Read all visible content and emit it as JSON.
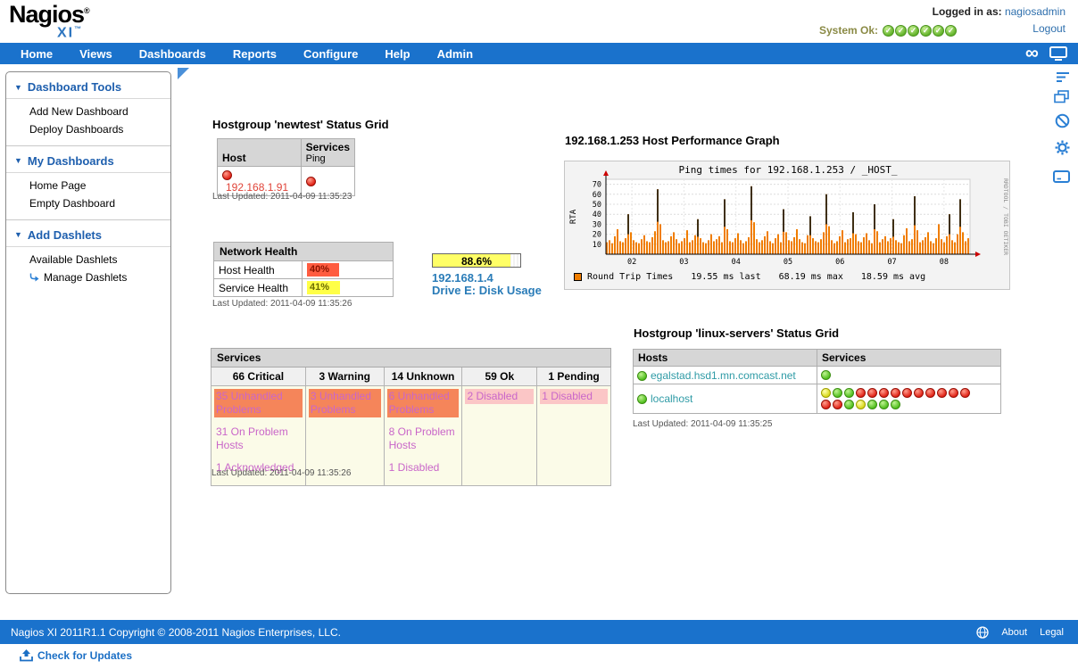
{
  "header": {
    "logo_main": "Nagios",
    "logo_reg": "®",
    "logo_sub": "XI",
    "logo_tm": "™",
    "logged_in_label": "Logged in as:",
    "username": "nagiosadmin",
    "logout_label": "Logout",
    "system_status_label": "System Ok:",
    "system_status_ok_count": 6
  },
  "icons": {
    "ok_check": "✓",
    "section_triangle": "▼",
    "infinity": "∞"
  },
  "nav": {
    "items": [
      "Home",
      "Views",
      "Dashboards",
      "Reports",
      "Configure",
      "Help",
      "Admin"
    ]
  },
  "sidebar": {
    "sections": [
      {
        "title": "Dashboard Tools",
        "items": [
          {
            "label": "Add New Dashboard"
          },
          {
            "label": "Deploy Dashboards"
          }
        ]
      },
      {
        "title": "My Dashboards",
        "items": [
          {
            "label": "Home Page"
          },
          {
            "label": "Empty Dashboard"
          }
        ]
      },
      {
        "title": "Add Dashlets",
        "items": [
          {
            "label": "Available Dashlets"
          },
          {
            "label": "Manage Dashlets",
            "icon": "curved-arrow-icon"
          }
        ]
      }
    ]
  },
  "newtest_grid": {
    "title": "Hostgroup 'newtest' Status Grid",
    "columns": {
      "host": "Host",
      "services": "Services"
    },
    "service_name": "Ping",
    "rows": [
      {
        "host": "192.168.1.91",
        "host_status": "red",
        "services": [
          "red"
        ]
      }
    ],
    "last_updated": "Last Updated: 2011-04-09 11:35:23"
  },
  "perf_graph": {
    "title": "192.168.1.253 Host Performance Graph",
    "chart_data": {
      "type": "area",
      "title": "Ping times for  192.168.1.253 / _HOST_",
      "ylabel": "RTA",
      "y_ticks": [
        10,
        20,
        30,
        40,
        50,
        60,
        70
      ],
      "ymax": 75,
      "x_ticks": [
        "02",
        "03",
        "04",
        "05",
        "06",
        "07",
        "08"
      ],
      "series_name": "Round Trip Times",
      "series_color": "#f07d00",
      "values": [
        12,
        14,
        11,
        18,
        25,
        13,
        12,
        16,
        40,
        22,
        14,
        12,
        11,
        15,
        19,
        13,
        12,
        17,
        23,
        65,
        30,
        14,
        12,
        13,
        18,
        22,
        15,
        11,
        13,
        16,
        24,
        12,
        14,
        19,
        35,
        16,
        12,
        11,
        14,
        20,
        13,
        15,
        18,
        12,
        55,
        25,
        13,
        12,
        16,
        21,
        14,
        11,
        13,
        17,
        68,
        32,
        15,
        12,
        14,
        18,
        23,
        13,
        11,
        16,
        20,
        12,
        45,
        22,
        14,
        13,
        17,
        25,
        15,
        12,
        11,
        19,
        38,
        16,
        13,
        12,
        15,
        22,
        60,
        28,
        14,
        11,
        13,
        18,
        24,
        12,
        15,
        16,
        42,
        20,
        13,
        12,
        17,
        21,
        14,
        11,
        50,
        23,
        12,
        15,
        18,
        13,
        16,
        35,
        14,
        12,
        11,
        19,
        26,
        13,
        15,
        58,
        24,
        12,
        14,
        17,
        22,
        13,
        11,
        16,
        30,
        15,
        12,
        18,
        40,
        14,
        12,
        20,
        55,
        22,
        13,
        16
      ],
      "legend": {
        "series": "Round Trip Times",
        "last": "19.55 ms last",
        "max": "68.19 ms max",
        "avg": "18.59 ms avg"
      },
      "watermark": "RRDTOOL / TOBI OETIKER",
      "grid": true,
      "legend_position": "bottom"
    }
  },
  "network_health": {
    "title": "Network Health",
    "rows": [
      {
        "label": "Host Health",
        "value": "40%",
        "pct": 40,
        "fill": "#ff5c40",
        "text_color": "#8a1400"
      },
      {
        "label": "Service Health",
        "value": "41%",
        "pct": 41,
        "fill": "#ffff47",
        "text_color": "#6b6b00"
      }
    ],
    "last_updated": "Last Updated: 2011-04-09 11:35:26"
  },
  "disk_gauge": {
    "value": "88.6%",
    "pct": 88.6,
    "fill": "#ffff66",
    "host": "192.168.1.4",
    "label": "Drive E: Disk Usage"
  },
  "services_summary": {
    "title": "Services",
    "columns": [
      {
        "header": "66 Critical",
        "items": [
          {
            "label": "35 Unhandled Problems",
            "style": "unhandled"
          },
          {
            "label": "31 On Problem Hosts",
            "style": "plain"
          },
          {
            "label": "1 Acknowledged",
            "style": "plain"
          }
        ]
      },
      {
        "header": "3 Warning",
        "items": [
          {
            "label": "3 Unhandled Problems",
            "style": "unhandled"
          }
        ]
      },
      {
        "header": "14 Unknown",
        "items": [
          {
            "label": "6 Unhandled Problems",
            "style": "unhandled"
          },
          {
            "label": "8 On Problem Hosts",
            "style": "plain"
          },
          {
            "label": "1 Disabled",
            "style": "plain"
          }
        ]
      },
      {
        "header": "59 Ok",
        "items": [
          {
            "label": "2 Disabled",
            "style": "disabled"
          }
        ]
      },
      {
        "header": "1 Pending",
        "items": [
          {
            "label": "1 Disabled",
            "style": "disabled"
          }
        ]
      }
    ],
    "last_updated": "Last Updated: 2011-04-09 11:35:26"
  },
  "linux_grid": {
    "title": "Hostgroup 'linux-servers' Status Grid",
    "columns": {
      "hosts": "Hosts",
      "services": "Services"
    },
    "rows": [
      {
        "host": "egalstad.hsd1.mn.comcast.net",
        "host_status": "green",
        "service_rows": [
          [
            "green"
          ]
        ]
      },
      {
        "host": "localhost",
        "host_status": "green",
        "service_rows": [
          [
            "yellow",
            "green",
            "green",
            "red",
            "red",
            "red",
            "red",
            "red",
            "red",
            "red",
            "red",
            "red",
            "red"
          ],
          [
            "red",
            "red",
            "green",
            "yellow",
            "green",
            "green",
            "green"
          ]
        ]
      }
    ],
    "last_updated": "Last Updated: 2011-04-09 11:35:25"
  },
  "footer": {
    "copyright": "Nagios XI 2011R1.1 Copyright © 2008-2011 Nagios Enterprises, LLC.",
    "about_label": "About",
    "legal_label": "Legal"
  },
  "updates": {
    "label": "Check for Updates"
  },
  "colors": {
    "nav_blue": "#1a72cc",
    "link_blue": "#2e6fad",
    "icon_blue": "#2a7fd4",
    "critical_bg": "#f5855a",
    "disabled_bg": "#fbc6c6"
  }
}
